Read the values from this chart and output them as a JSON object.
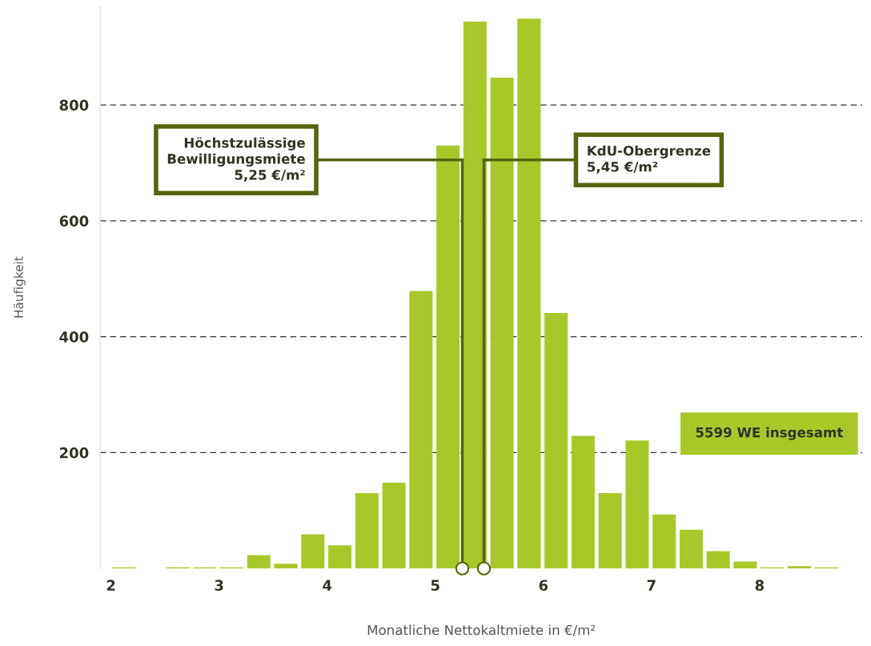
{
  "chart_data": {
    "type": "histogram",
    "bins": [
      2.0,
      2.25,
      2.5,
      2.75,
      3.0,
      3.25,
      3.5,
      3.75,
      4.0,
      4.25,
      4.5,
      4.75,
      5.0,
      5.25,
      5.5,
      5.75,
      6.0,
      6.25,
      6.5,
      6.75,
      7.0,
      7.25,
      7.5,
      7.75,
      8.0,
      8.25,
      8.5,
      8.75
    ],
    "values": [
      2,
      0,
      2,
      2,
      2,
      23,
      8,
      59,
      40,
      130,
      148,
      479,
      730,
      944,
      847,
      949,
      441,
      229,
      130,
      221,
      93,
      67,
      30,
      12,
      2,
      4,
      2
    ],
    "color": "#a8c82a",
    "xlabel": "Monatliche Nettokaltmiete in €/m²",
    "ylabel": "Häufigkeit",
    "xlim": [
      1.9,
      8.95
    ],
    "xticks": [
      2,
      3,
      4,
      5,
      6,
      7,
      8
    ],
    "ylim": [
      0,
      970
    ],
    "yticks": [
      200,
      400,
      600,
      800
    ],
    "grid": "y",
    "ref_lines": [
      {
        "axis": "x",
        "value": 5.25,
        "label": "Höchstzulässige\nBewilligungsmiete\n5,25 €/m²",
        "color": "#55650f"
      },
      {
        "axis": "x",
        "value": 5.45,
        "label": "KdU-Obergrenze\n5,45 €/m²",
        "color": "#55650f"
      }
    ],
    "annotations": [
      "5599 WE insgesamt"
    ]
  }
}
